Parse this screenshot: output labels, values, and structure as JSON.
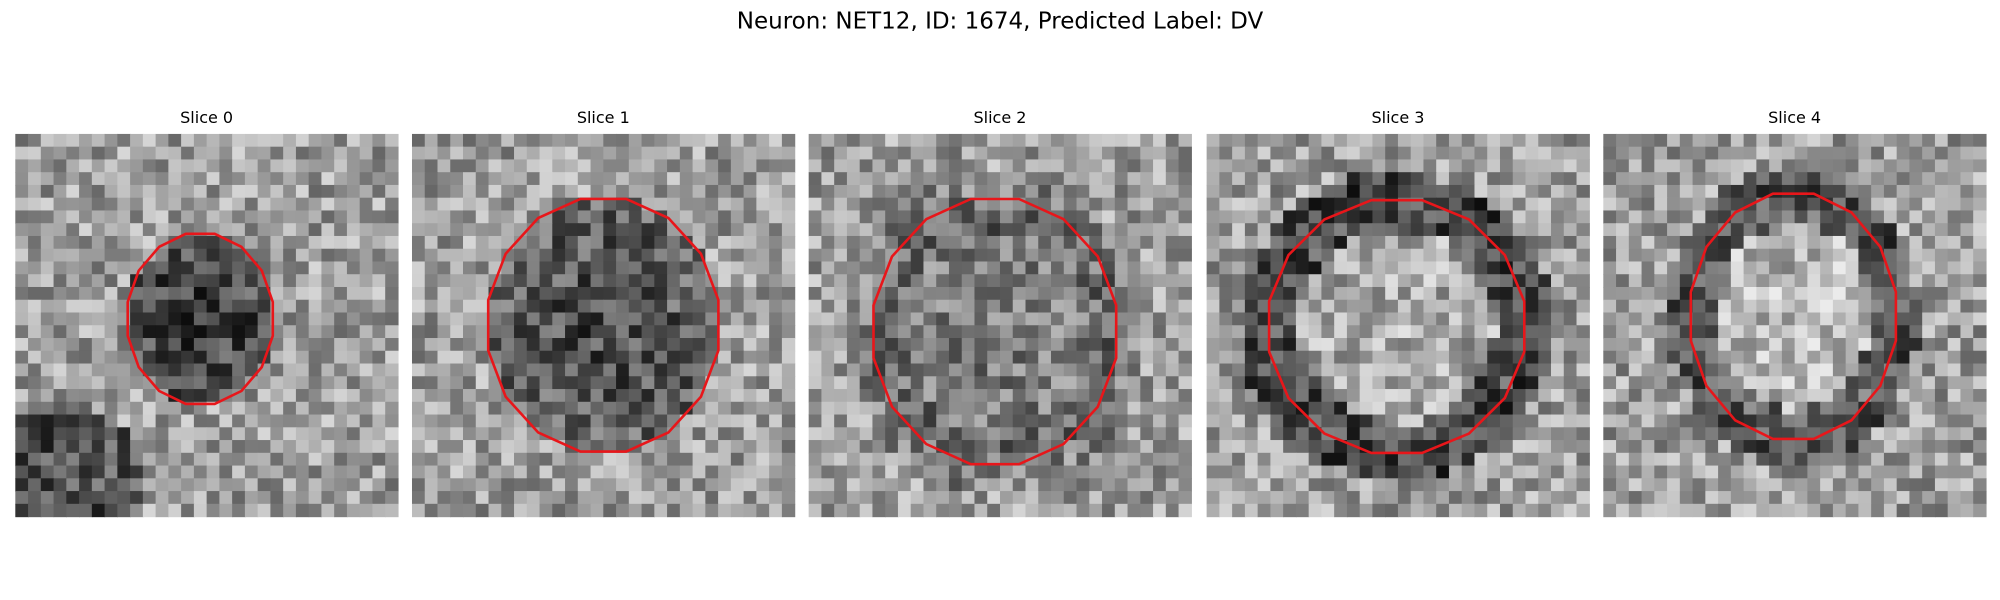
{
  "title": "Neuron: NET12, ID: 1674, Predicted Label: DV",
  "panels": [
    {
      "title": "Slice 0"
    },
    {
      "title": "Slice 1"
    },
    {
      "title": "Slice 2"
    },
    {
      "title": "Slice 3"
    },
    {
      "title": "Slice 4"
    }
  ]
}
